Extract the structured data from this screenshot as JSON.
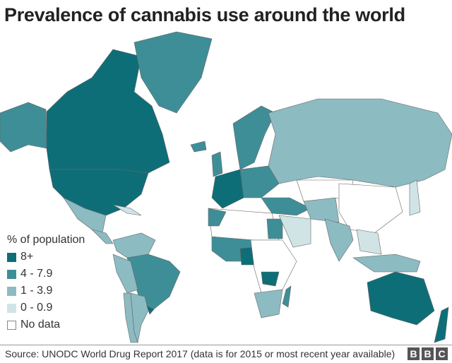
{
  "title": "Prevalence of cannabis use around the world",
  "legend": {
    "title": "% of population",
    "items": [
      {
        "label": "8+",
        "color": "#0e6e78"
      },
      {
        "label": "4 - 7.9",
        "color": "#3e8e98"
      },
      {
        "label": "1 - 3.9",
        "color": "#8cbbc2"
      },
      {
        "label": "0 - 0.9",
        "color": "#d0e4e6"
      },
      {
        "label": "No data",
        "color": "#ffffff"
      }
    ]
  },
  "footer": {
    "source": "Source: UNODC World Drug Report 2017 (data is for 2015 or most recent year available)",
    "logo": [
      "B",
      "B",
      "C"
    ]
  }
}
